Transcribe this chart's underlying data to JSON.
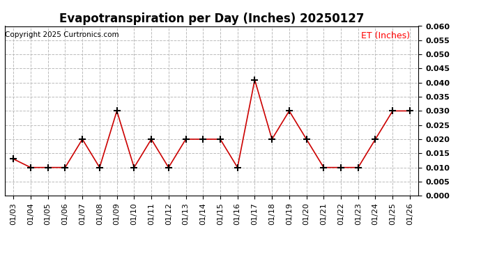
{
  "title": "Evapotranspiration per Day (Inches) 20250127",
  "copyright_text": "Copyright 2025 Curtronics.com",
  "legend_label": "ET (Inches)",
  "dates": [
    "01/03",
    "01/04",
    "01/05",
    "01/06",
    "01/07",
    "01/08",
    "01/09",
    "01/10",
    "01/11",
    "01/12",
    "01/13",
    "01/14",
    "01/15",
    "01/16",
    "01/17",
    "01/18",
    "01/19",
    "01/20",
    "01/21",
    "01/22",
    "01/23",
    "01/24",
    "01/25",
    "01/26"
  ],
  "values": [
    0.013,
    0.01,
    0.01,
    0.01,
    0.02,
    0.01,
    0.03,
    0.01,
    0.02,
    0.01,
    0.02,
    0.02,
    0.02,
    0.01,
    0.041,
    0.02,
    0.03,
    0.02,
    0.01,
    0.01,
    0.01,
    0.02,
    0.03,
    0.03
  ],
  "line_color": "#cc0000",
  "marker": "+",
  "marker_color": "#000000",
  "ylim": [
    0.0,
    0.06
  ],
  "yticks": [
    0.0,
    0.005,
    0.01,
    0.015,
    0.02,
    0.025,
    0.03,
    0.035,
    0.04,
    0.045,
    0.05,
    0.055,
    0.06
  ],
  "grid_color": "#bbbbbb",
  "grid_style": "--",
  "background_color": "#ffffff",
  "title_fontsize": 12,
  "copyright_fontsize": 7.5,
  "legend_fontsize": 9,
  "tick_fontsize": 8,
  "ytick_fontsize": 8
}
